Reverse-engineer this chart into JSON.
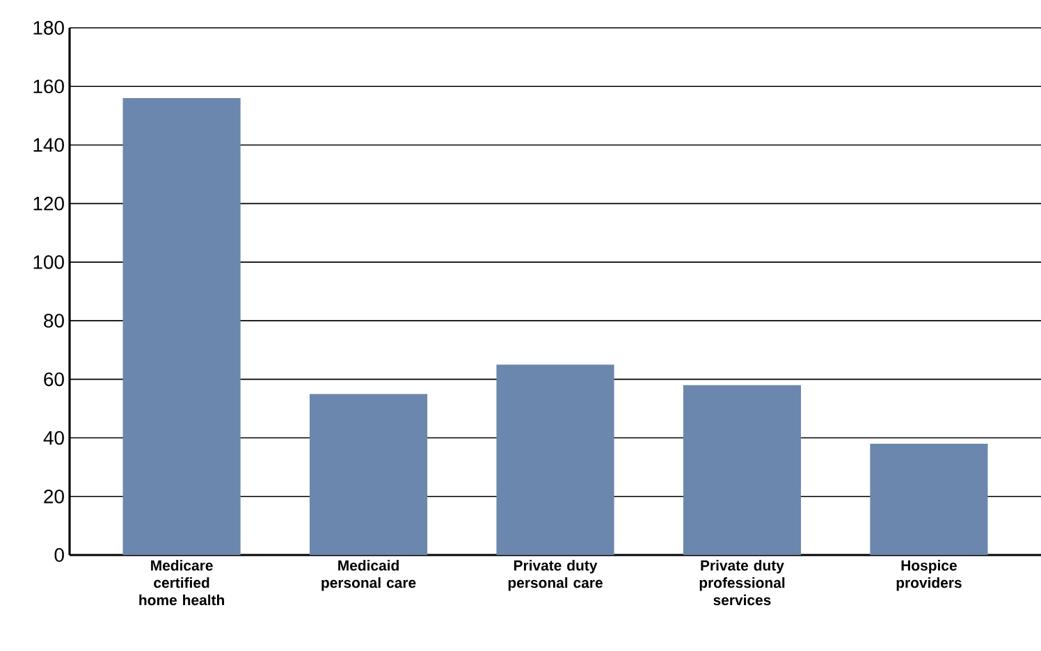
{
  "chart_data": {
    "type": "bar",
    "categories": [
      "Medicare certified home health",
      "Medicaid personal care",
      "Private duty personal care",
      "Private duty professional services",
      "Hospice providers"
    ],
    "values": [
      156,
      55,
      65,
      58,
      38
    ],
    "color": "#6b87ad",
    "ylim": [
      0,
      180
    ],
    "yticks": [
      0,
      20,
      40,
      60,
      80,
      100,
      120,
      140,
      160,
      180
    ],
    "grid": "y"
  }
}
